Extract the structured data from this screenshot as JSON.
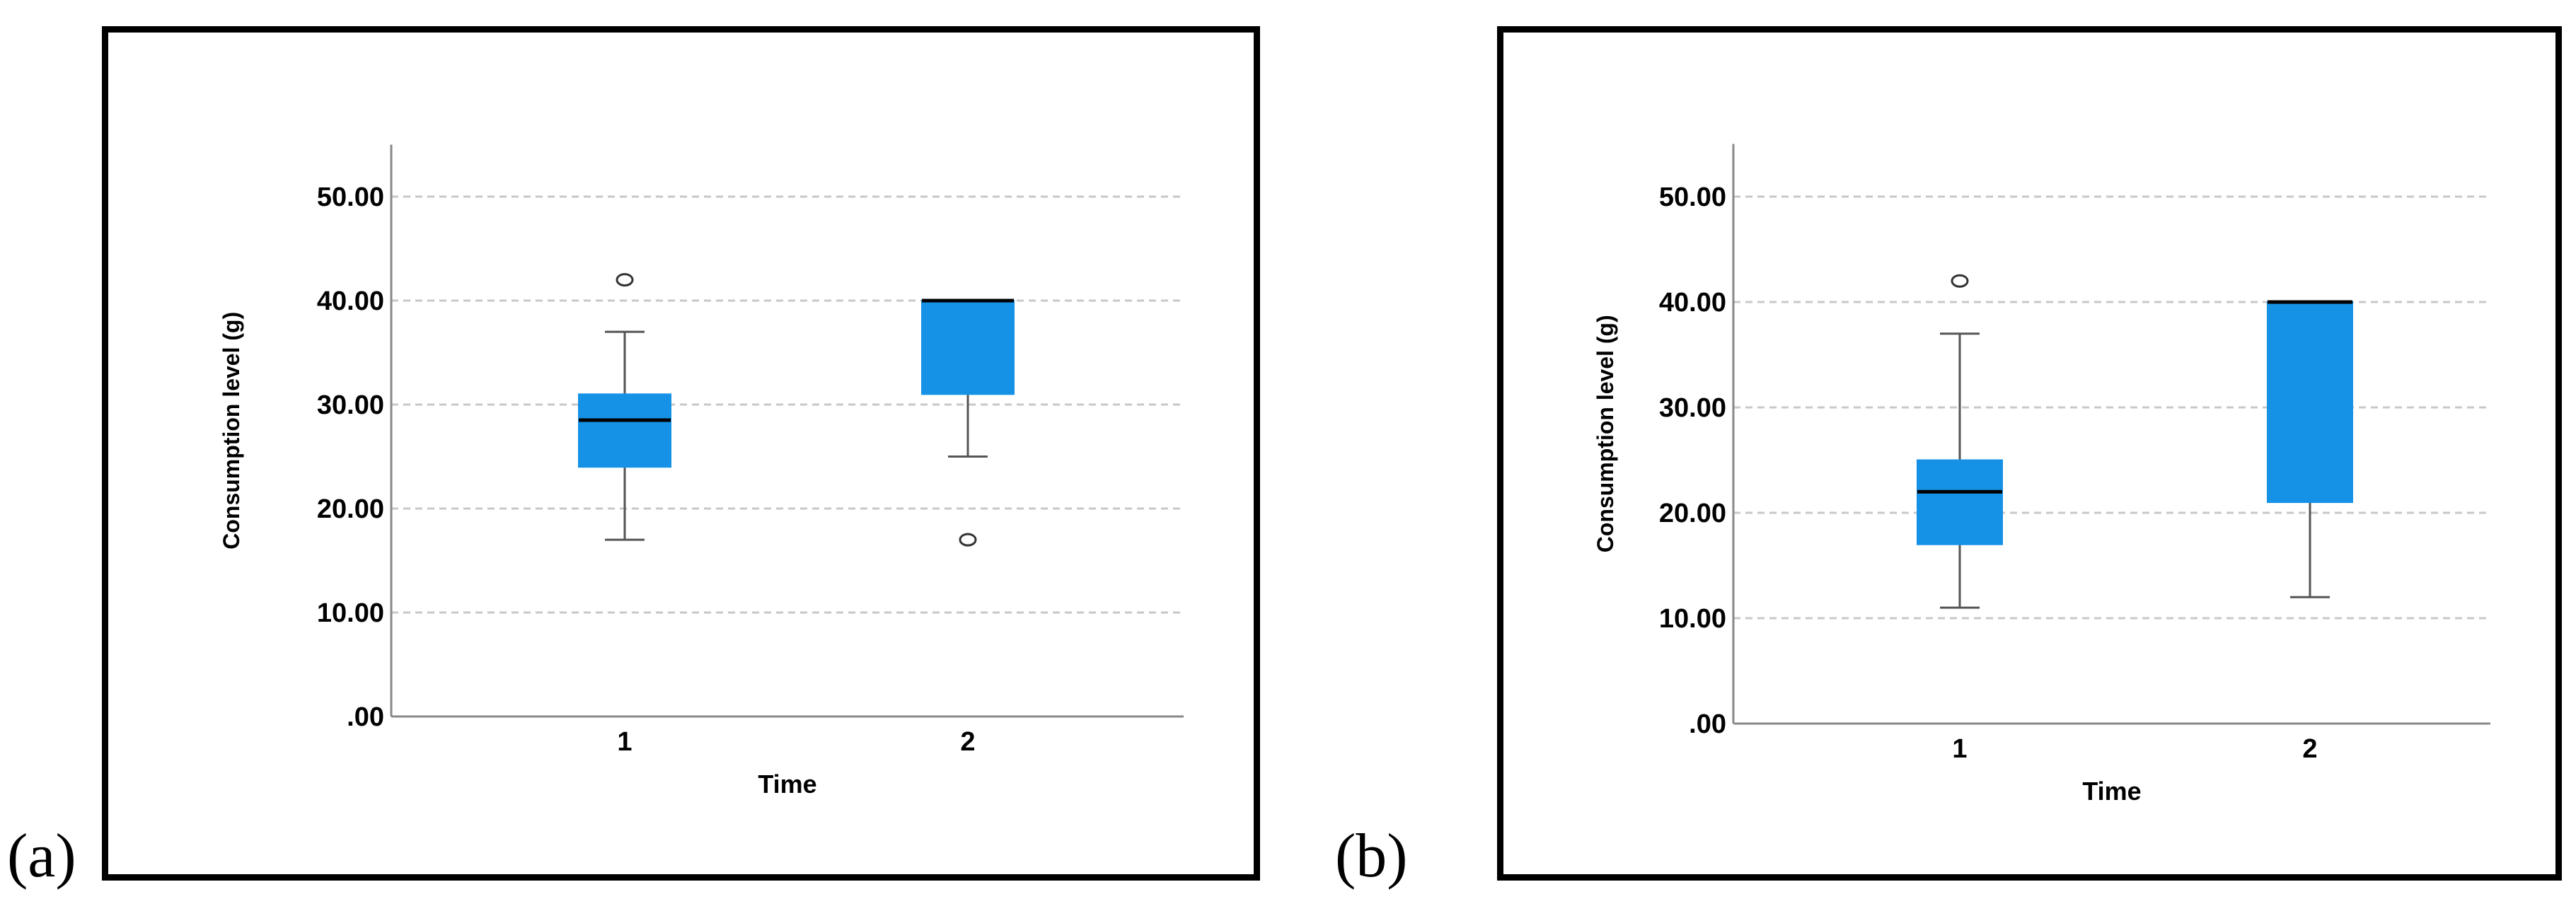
{
  "panel_labels": [
    "(a)",
    "(b)"
  ],
  "colors": {
    "box_fill": "#1592e6",
    "median": "#000000",
    "whisker": "#555555",
    "grid": "#c8c8c8",
    "axis": "#888888"
  },
  "chart_data": [
    {
      "type": "boxplot",
      "panel": "(a)",
      "xlabel": "Time",
      "ylabel": "Consumption level (g)",
      "ylim": [
        0,
        55
      ],
      "yticks": [
        ".00",
        "10.00",
        "20.00",
        "30.00",
        "40.00",
        "50.00"
      ],
      "ytick_values": [
        0,
        10,
        20,
        30,
        40,
        50
      ],
      "grid": true,
      "categories": [
        "1",
        "2"
      ],
      "boxes": [
        {
          "category": "1",
          "whisker_low": 17,
          "q1": 24,
          "median": 28.5,
          "q3": 31,
          "whisker_high": 37,
          "outliers": [
            42
          ]
        },
        {
          "category": "2",
          "whisker_low": 25,
          "q1": 31,
          "median": 40,
          "q3": 40,
          "whisker_high": 40,
          "outliers": [
            17
          ]
        }
      ]
    },
    {
      "type": "boxplot",
      "panel": "(b)",
      "xlabel": "Time",
      "ylabel": "Consumption level (g)",
      "ylim": [
        0,
        55
      ],
      "yticks": [
        ".00",
        "10.00",
        "20.00",
        "30.00",
        "40.00",
        "50.00"
      ],
      "ytick_values": [
        0,
        10,
        20,
        30,
        40,
        50
      ],
      "grid": true,
      "categories": [
        "1",
        "2"
      ],
      "boxes": [
        {
          "category": "1",
          "whisker_low": 11,
          "q1": 17,
          "median": 22,
          "q3": 25,
          "whisker_high": 37,
          "outliers": [
            42
          ]
        },
        {
          "category": "2",
          "whisker_low": 12,
          "q1": 21,
          "median": 40,
          "q3": 40,
          "whisker_high": 40,
          "outliers": []
        }
      ]
    }
  ]
}
